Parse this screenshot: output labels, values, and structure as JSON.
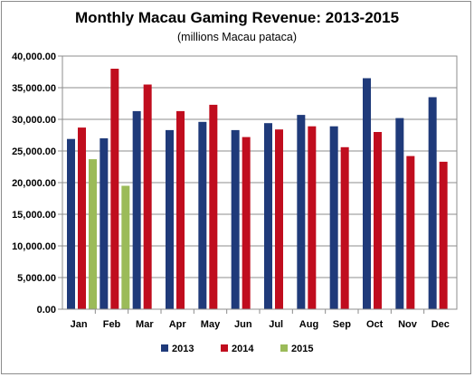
{
  "chart_data": {
    "type": "bar",
    "title": "Monthly Macau Gaming Revenue: 2013-2015",
    "subtitle": "(millions Macau pataca)",
    "categories": [
      "Jan",
      "Feb",
      "Mar",
      "Apr",
      "May",
      "Jun",
      "Jul",
      "Aug",
      "Sep",
      "Oct",
      "Nov",
      "Dec"
    ],
    "series": [
      {
        "name": "2013",
        "color": "#1f3a7a",
        "values": [
          26900,
          27000,
          31300,
          28300,
          29600,
          28300,
          29400,
          30700,
          28900,
          36500,
          30200,
          33500
        ]
      },
      {
        "name": "2014",
        "color": "#c00d1e",
        "values": [
          28700,
          38000,
          35500,
          31300,
          32300,
          27200,
          28400,
          28900,
          25600,
          28000,
          24200,
          23300
        ]
      },
      {
        "name": "2015",
        "color": "#9bbb59",
        "values": [
          23700,
          19500,
          null,
          null,
          null,
          null,
          null,
          null,
          null,
          null,
          null,
          null
        ]
      }
    ],
    "ylim": [
      0,
      40000
    ],
    "yticks": [
      "0.00",
      "5,000.00",
      "10,000.00",
      "15,000.00",
      "20,000.00",
      "25,000.00",
      "30,000.00",
      "35,000.00",
      "40,000.00"
    ],
    "grid": true,
    "legend_position": "bottom"
  }
}
